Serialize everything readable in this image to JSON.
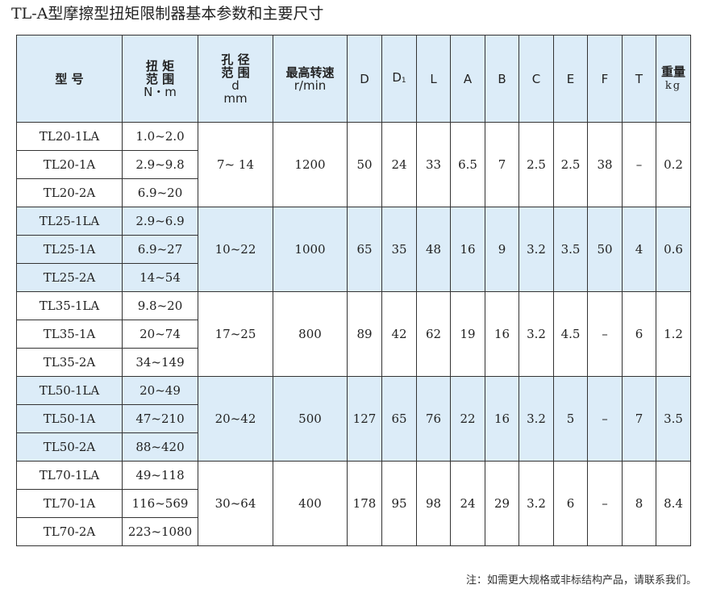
{
  "title": "TL-A型摩擦型扭矩限制器基本参数和主要尺寸",
  "headers": {
    "model": "型 号",
    "torque": [
      "扭 矩",
      "范 围",
      "N・m"
    ],
    "bore": [
      "孔 径",
      "范 围",
      "d",
      "mm"
    ],
    "speed": [
      "最高转速",
      "r/min"
    ],
    "D": "D",
    "D1": "D",
    "D1_sub": "1",
    "L": "L",
    "A": "A",
    "B": "B",
    "C": "C",
    "E": "E",
    "F": "F",
    "T": "T",
    "weight": [
      "重量",
      "kg"
    ]
  },
  "groups": [
    {
      "rows": [
        {
          "model": "TL20-1LA",
          "torque": "1.0~2.0"
        },
        {
          "model": "TL20-1A",
          "torque": "2.9~9.8"
        },
        {
          "model": "TL20-2A",
          "torque": "6.9~20"
        }
      ],
      "bore": "7~  14",
      "speed": "1200",
      "D": "50",
      "D1": "24",
      "L": "33",
      "A": "6.5",
      "B": "7",
      "C": "2.5",
      "E": "2.5",
      "F": "38",
      "T": "–",
      "weight": "0.2"
    },
    {
      "rows": [
        {
          "model": "TL25-1LA",
          "torque": "2.9~6.9"
        },
        {
          "model": "TL25-1A",
          "torque": "6.9~27"
        },
        {
          "model": "TL25-2A",
          "torque": "14~54"
        }
      ],
      "bore": "10~22",
      "speed": "1000",
      "D": "65",
      "D1": "35",
      "L": "48",
      "A": "16",
      "B": "9",
      "C": "3.2",
      "E": "3.5",
      "F": "50",
      "T": "4",
      "weight": "0.6"
    },
    {
      "rows": [
        {
          "model": "TL35-1LA",
          "torque": "9.8~20"
        },
        {
          "model": "TL35-1A",
          "torque": "20~74"
        },
        {
          "model": "TL35-2A",
          "torque": "34~149"
        }
      ],
      "bore": "17~25",
      "speed": "800",
      "D": "89",
      "D1": "42",
      "L": "62",
      "A": "19",
      "B": "16",
      "C": "3.2",
      "E": "4.5",
      "F": "–",
      "T": "6",
      "weight": "1.2"
    },
    {
      "rows": [
        {
          "model": "TL50-1LA",
          "torque": "20~49"
        },
        {
          "model": "TL50-1A",
          "torque": "47~210"
        },
        {
          "model": "TL50-2A",
          "torque": "88~420"
        }
      ],
      "bore": "20~42",
      "speed": "500",
      "D": "127",
      "D1": "65",
      "L": "76",
      "A": "22",
      "B": "16",
      "C": "3.2",
      "E": "5",
      "F": "–",
      "T": "7",
      "weight": "3.5"
    },
    {
      "rows": [
        {
          "model": "TL70-1LA",
          "torque": "49~118"
        },
        {
          "model": "TL70-1A",
          "torque": "116~569"
        },
        {
          "model": "TL70-2A",
          "torque": "223~1080"
        }
      ],
      "bore": "30~64",
      "speed": "400",
      "D": "178",
      "D1": "95",
      "L": "98",
      "A": "24",
      "B": "29",
      "C": "3.2",
      "E": "6",
      "F": "–",
      "T": "8",
      "weight": "8.4"
    }
  ],
  "note": "注：如需更大规格或非标结构产品，请联系我们。",
  "colors": {
    "highlight": "#dcecf8",
    "border": "#333333"
  }
}
